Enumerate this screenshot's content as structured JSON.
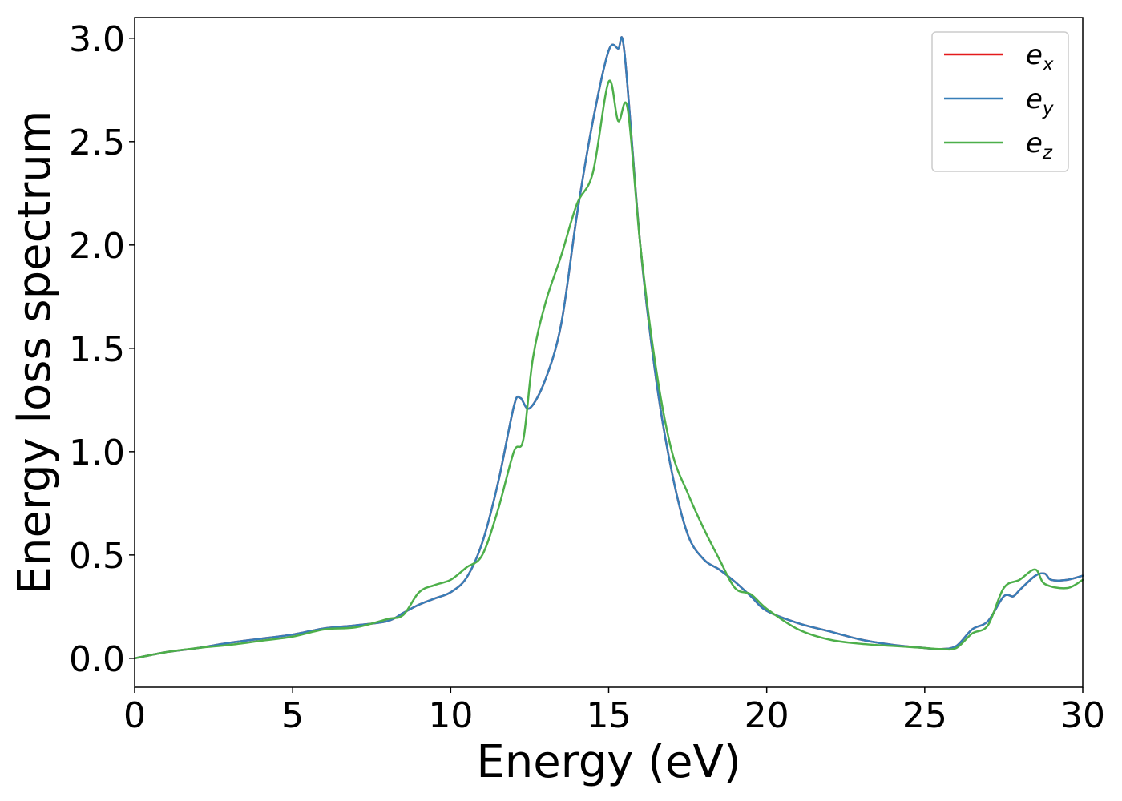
{
  "chart_data": {
    "type": "line",
    "xlabel": "Energy (eV)",
    "ylabel": "Energy loss spectrum",
    "xlim": [
      0,
      30
    ],
    "ylim": [
      -0.14,
      3.1
    ],
    "xticks": [
      0,
      5,
      10,
      15,
      20,
      25,
      30
    ],
    "xtick_labels": [
      "0",
      "5",
      "10",
      "15",
      "20",
      "25",
      "30"
    ],
    "yticks": [
      0.0,
      0.5,
      1.0,
      1.5,
      2.0,
      2.5,
      3.0
    ],
    "ytick_labels": [
      "0.0",
      "0.5",
      "1.0",
      "1.5",
      "2.0",
      "2.5",
      "3.0"
    ],
    "grid": false,
    "legend_position": "top-right",
    "series": [
      {
        "name": "e_x",
        "label_base": "e",
        "label_sub": "x",
        "color": "#e41a1c",
        "x": [
          0,
          1,
          2,
          3,
          4,
          5,
          6,
          7,
          8,
          8.5,
          9,
          9.5,
          10,
          10.5,
          11,
          11.5,
          12,
          12.2,
          12.5,
          13,
          13.5,
          14,
          14.5,
          15,
          15.3,
          15.5,
          16,
          16.5,
          17,
          17.5,
          18,
          18.5,
          19,
          19.5,
          20,
          21,
          22,
          23,
          24,
          25,
          25.5,
          26,
          26.5,
          27,
          27.5,
          27.8,
          28,
          28.5,
          28.8,
          29,
          29.5,
          30
        ],
        "y": [
          0.0,
          0.03,
          0.05,
          0.075,
          0.095,
          0.115,
          0.145,
          0.16,
          0.18,
          0.22,
          0.26,
          0.29,
          0.32,
          0.39,
          0.56,
          0.85,
          1.22,
          1.26,
          1.21,
          1.35,
          1.62,
          2.15,
          2.6,
          2.94,
          2.95,
          2.93,
          2.0,
          1.35,
          0.9,
          0.6,
          0.48,
          0.43,
          0.37,
          0.3,
          0.23,
          0.17,
          0.13,
          0.09,
          0.065,
          0.05,
          0.045,
          0.06,
          0.14,
          0.18,
          0.3,
          0.3,
          0.33,
          0.4,
          0.41,
          0.38,
          0.38,
          0.4
        ]
      },
      {
        "name": "e_y",
        "label_base": "e",
        "label_sub": "y",
        "color": "#377eb8",
        "x": [
          0,
          1,
          2,
          3,
          4,
          5,
          6,
          7,
          8,
          8.5,
          9,
          9.5,
          10,
          10.5,
          11,
          11.5,
          12,
          12.2,
          12.5,
          13,
          13.5,
          14,
          14.5,
          15,
          15.3,
          15.5,
          16,
          16.5,
          17,
          17.5,
          18,
          18.5,
          19,
          19.5,
          20,
          21,
          22,
          23,
          24,
          25,
          25.5,
          26,
          26.5,
          27,
          27.5,
          27.8,
          28,
          28.5,
          28.8,
          29,
          29.5,
          30
        ],
        "y": [
          0.0,
          0.03,
          0.05,
          0.075,
          0.095,
          0.115,
          0.145,
          0.16,
          0.18,
          0.22,
          0.26,
          0.29,
          0.32,
          0.39,
          0.56,
          0.85,
          1.22,
          1.26,
          1.21,
          1.35,
          1.62,
          2.15,
          2.6,
          2.94,
          2.95,
          2.93,
          2.0,
          1.35,
          0.9,
          0.6,
          0.48,
          0.43,
          0.37,
          0.3,
          0.23,
          0.17,
          0.13,
          0.09,
          0.065,
          0.05,
          0.045,
          0.06,
          0.14,
          0.18,
          0.3,
          0.3,
          0.33,
          0.4,
          0.41,
          0.38,
          0.38,
          0.4
        ]
      },
      {
        "name": "e_z",
        "label_base": "e",
        "label_sub": "z",
        "color": "#4daf4a",
        "x": [
          0,
          1,
          2,
          3,
          4,
          5,
          6,
          7,
          8,
          8.5,
          9,
          9.5,
          10,
          10.5,
          11,
          11.5,
          12,
          12.3,
          12.6,
          13,
          13.5,
          14,
          14.5,
          15,
          15.3,
          15.6,
          16,
          16.5,
          17,
          17.5,
          18,
          18.5,
          19,
          19.5,
          20,
          21,
          22,
          23,
          24,
          25,
          25.5,
          26,
          26.5,
          27,
          27.5,
          28,
          28.5,
          28.8,
          29.5,
          30
        ],
        "y": [
          0.0,
          0.03,
          0.05,
          0.065,
          0.085,
          0.105,
          0.14,
          0.15,
          0.19,
          0.21,
          0.32,
          0.355,
          0.38,
          0.44,
          0.5,
          0.72,
          1.0,
          1.06,
          1.45,
          1.72,
          1.95,
          2.2,
          2.35,
          2.79,
          2.6,
          2.66,
          2.0,
          1.4,
          1.0,
          0.8,
          0.63,
          0.48,
          0.34,
          0.31,
          0.24,
          0.14,
          0.09,
          0.07,
          0.06,
          0.05,
          0.045,
          0.05,
          0.12,
          0.16,
          0.34,
          0.38,
          0.43,
          0.36,
          0.34,
          0.38
        ]
      }
    ]
  }
}
